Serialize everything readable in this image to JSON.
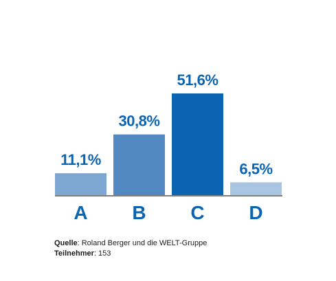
{
  "chart_data": {
    "type": "bar",
    "categories": [
      "A",
      "B",
      "C",
      "D"
    ],
    "values": [
      11.1,
      30.8,
      51.6,
      6.5
    ],
    "value_labels": [
      "11,1%",
      "30,8%",
      "51,6%",
      "6,5%"
    ],
    "colors": [
      "#7da6d1",
      "#5389c2",
      "#0a64b2",
      "#a8c5e2"
    ],
    "label_color": "#0a64b2",
    "axis_color": "#333333",
    "ylim": [
      0,
      51.6
    ],
    "grid": false,
    "title": "",
    "xlabel": "",
    "ylabel": ""
  },
  "source": {
    "source_label": "Quelle",
    "source_text": ": Roland Berger und die WELT-Gruppe",
    "participants_label": "Teilnehmer",
    "participants_text": ": 153"
  }
}
